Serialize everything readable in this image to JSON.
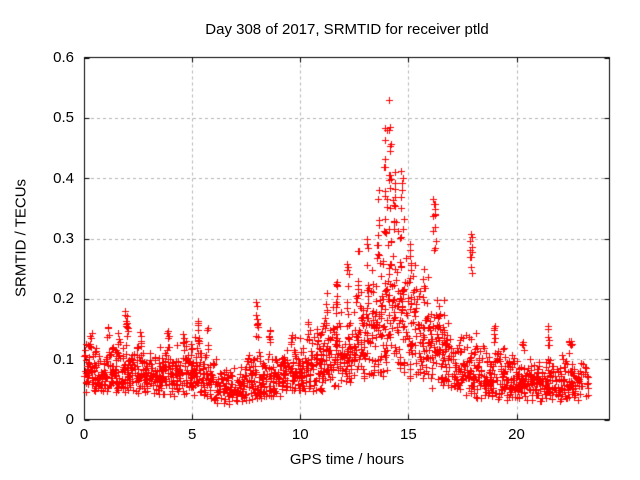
{
  "chart_data": {
    "type": "scatter",
    "title": "Day 308 of 2017, SRMTID for receiver ptld",
    "xlabel": "GPS time / hours",
    "ylabel": "SRMTID / TECUs",
    "xlim": [
      0,
      24.3
    ],
    "ylim": [
      0,
      0.6
    ],
    "xticks": [
      0,
      5,
      10,
      15,
      20
    ],
    "xtick_labels": [
      "0",
      "5",
      "10",
      "15",
      "20"
    ],
    "yticks": [
      0,
      0.1,
      0.2,
      0.3,
      0.4,
      0.5,
      0.6
    ],
    "ytick_labels": [
      "0",
      "0.1",
      "0.2",
      "0.3",
      "0.4",
      "0.5",
      "0.6"
    ],
    "grid": true,
    "legend": "none",
    "marker": {
      "shape": "plus",
      "size": 7,
      "color": "#ff0000"
    },
    "data_time_range_hours": [
      0,
      23.3
    ],
    "peak": {
      "time_hours": 14.1,
      "value_tecus": 0.55
    },
    "seed": 308,
    "band_skew": 1.35,
    "band_bins_format": [
      "t_start_h",
      "t_end_h",
      "n_points",
      "y_min",
      "y_max"
    ],
    "band_bins": [
      [
        0.0,
        0.5,
        46,
        0.04,
        0.135
      ],
      [
        0.5,
        1.0,
        46,
        0.04,
        0.125
      ],
      [
        1.0,
        1.5,
        46,
        0.04,
        0.14
      ],
      [
        1.5,
        2.0,
        46,
        0.04,
        0.15
      ],
      [
        2.0,
        2.5,
        46,
        0.035,
        0.14
      ],
      [
        2.5,
        3.0,
        44,
        0.035,
        0.125
      ],
      [
        3.0,
        3.5,
        44,
        0.038,
        0.13
      ],
      [
        3.5,
        4.0,
        44,
        0.035,
        0.125
      ],
      [
        4.0,
        4.5,
        44,
        0.038,
        0.13
      ],
      [
        4.5,
        5.0,
        44,
        0.038,
        0.14
      ],
      [
        5.0,
        5.5,
        44,
        0.035,
        0.14
      ],
      [
        5.5,
        6.0,
        40,
        0.03,
        0.115
      ],
      [
        6.0,
        6.5,
        38,
        0.025,
        0.105
      ],
      [
        6.5,
        7.0,
        36,
        0.022,
        0.095
      ],
      [
        7.0,
        7.5,
        38,
        0.025,
        0.1
      ],
      [
        7.5,
        8.0,
        40,
        0.028,
        0.11
      ],
      [
        8.0,
        8.5,
        42,
        0.03,
        0.12
      ],
      [
        8.5,
        9.0,
        42,
        0.035,
        0.13
      ],
      [
        9.0,
        9.5,
        42,
        0.038,
        0.13
      ],
      [
        9.5,
        10.0,
        44,
        0.04,
        0.14
      ],
      [
        10.0,
        10.5,
        44,
        0.042,
        0.15
      ],
      [
        10.5,
        11.0,
        46,
        0.045,
        0.165
      ],
      [
        11.0,
        11.5,
        46,
        0.048,
        0.185
      ],
      [
        11.5,
        12.0,
        46,
        0.05,
        0.205
      ],
      [
        12.0,
        12.5,
        48,
        0.055,
        0.225
      ],
      [
        12.5,
        13.0,
        48,
        0.058,
        0.245
      ],
      [
        13.0,
        13.5,
        48,
        0.06,
        0.27
      ],
      [
        13.5,
        14.0,
        50,
        0.068,
        0.32
      ],
      [
        14.0,
        14.5,
        52,
        0.075,
        0.4
      ],
      [
        14.5,
        15.0,
        50,
        0.068,
        0.35
      ],
      [
        15.0,
        15.5,
        46,
        0.06,
        0.27
      ],
      [
        15.5,
        16.0,
        46,
        0.058,
        0.25
      ],
      [
        16.0,
        16.5,
        44,
        0.052,
        0.24
      ],
      [
        16.5,
        17.0,
        42,
        0.045,
        0.18
      ],
      [
        17.0,
        17.5,
        40,
        0.04,
        0.15
      ],
      [
        17.5,
        18.0,
        40,
        0.035,
        0.16
      ],
      [
        18.0,
        18.5,
        42,
        0.032,
        0.15
      ],
      [
        18.5,
        19.0,
        42,
        0.03,
        0.125
      ],
      [
        19.0,
        19.5,
        42,
        0.03,
        0.13
      ],
      [
        19.5,
        20.0,
        42,
        0.03,
        0.12
      ],
      [
        20.0,
        20.5,
        42,
        0.03,
        0.115
      ],
      [
        20.5,
        21.0,
        40,
        0.03,
        0.11
      ],
      [
        21.0,
        21.5,
        42,
        0.03,
        0.115
      ],
      [
        21.5,
        22.0,
        40,
        0.03,
        0.11
      ],
      [
        22.0,
        22.5,
        42,
        0.03,
        0.115
      ],
      [
        22.5,
        23.3,
        50,
        0.028,
        0.11
      ]
    ],
    "clusters_format": [
      "t_center_h",
      "t_width_h",
      "n_points",
      "y_min",
      "y_max"
    ],
    "clusters": [
      [
        0.3,
        0.15,
        6,
        0.115,
        0.145
      ],
      [
        1.1,
        0.1,
        5,
        0.12,
        0.155
      ],
      [
        1.95,
        0.18,
        10,
        0.145,
        0.18
      ],
      [
        2.6,
        0.1,
        5,
        0.12,
        0.155
      ],
      [
        3.9,
        0.12,
        6,
        0.118,
        0.15
      ],
      [
        4.6,
        0.1,
        5,
        0.118,
        0.15
      ],
      [
        5.3,
        0.15,
        8,
        0.125,
        0.165
      ],
      [
        5.75,
        0.1,
        5,
        0.115,
        0.155
      ],
      [
        8.0,
        0.1,
        10,
        0.135,
        0.2
      ],
      [
        8.6,
        0.12,
        6,
        0.12,
        0.16
      ],
      [
        9.6,
        0.1,
        5,
        0.115,
        0.15
      ],
      [
        10.4,
        0.1,
        6,
        0.13,
        0.165
      ],
      [
        11.2,
        0.1,
        6,
        0.15,
        0.21
      ],
      [
        11.7,
        0.1,
        7,
        0.17,
        0.235
      ],
      [
        12.2,
        0.1,
        7,
        0.18,
        0.26
      ],
      [
        12.7,
        0.1,
        6,
        0.2,
        0.28
      ],
      [
        13.1,
        0.12,
        8,
        0.21,
        0.3
      ],
      [
        13.6,
        0.12,
        10,
        0.24,
        0.38
      ],
      [
        13.95,
        0.12,
        14,
        0.3,
        0.5
      ],
      [
        14.15,
        0.1,
        12,
        0.35,
        0.55
      ],
      [
        14.35,
        0.1,
        8,
        0.28,
        0.42
      ],
      [
        14.7,
        0.12,
        8,
        0.3,
        0.42
      ],
      [
        15.1,
        0.1,
        6,
        0.22,
        0.3
      ],
      [
        15.7,
        0.1,
        5,
        0.18,
        0.25
      ],
      [
        16.2,
        0.15,
        12,
        0.28,
        0.375
      ],
      [
        16.6,
        0.1,
        6,
        0.14,
        0.2
      ],
      [
        17.9,
        0.12,
        10,
        0.24,
        0.31
      ],
      [
        19.0,
        0.1,
        6,
        0.12,
        0.16
      ],
      [
        20.3,
        0.1,
        4,
        0.11,
        0.14
      ],
      [
        21.5,
        0.1,
        6,
        0.115,
        0.155
      ],
      [
        22.5,
        0.15,
        8,
        0.11,
        0.131
      ]
    ]
  },
  "colors": {
    "background": "#ffffff",
    "marker": "#ff0000",
    "grid": "#b4b4b4",
    "axis": "#000000",
    "text": "#000000"
  }
}
